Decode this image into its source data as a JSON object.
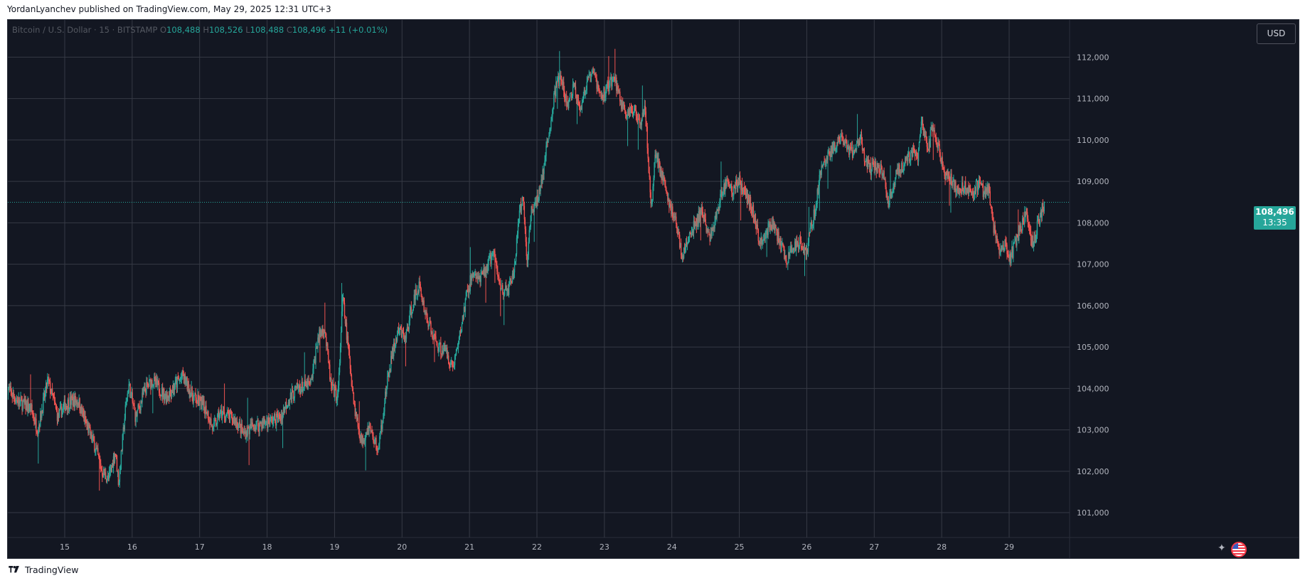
{
  "header": {
    "published_line": "YordanLyanchev published on TradingView.com, May 29, 2025 12:31 UTC+3"
  },
  "legend": {
    "symbol": "Bitcoin / U.S. Dollar · 15 · BITSTAMP",
    "o_label": "O",
    "o_value": "108,488",
    "h_label": "H",
    "h_value": "108,526",
    "l_label": "L",
    "l_value": "108,488",
    "c_label": "C",
    "c_value": "108,496",
    "change": "+11 (+0.01%)"
  },
  "currency_button": "USD",
  "last_price": {
    "value": "108,496",
    "countdown": "13:35"
  },
  "footer": {
    "brand": "TradingView"
  },
  "icons": {
    "logo": "tradingview-logo-icon",
    "flag": "us-flag-icon",
    "rocket": "rocket-icon"
  },
  "colors": {
    "up": "#26a69a",
    "down": "#ef5350",
    "background": "#131722",
    "grid": "#363a45"
  },
  "chart_data": {
    "type": "candlestick",
    "interval": "15",
    "x_ticks": [
      "15",
      "16",
      "17",
      "18",
      "19",
      "20",
      "21",
      "22",
      "23",
      "24",
      "25",
      "26",
      "27",
      "28",
      "29"
    ],
    "y_ticks": [
      "101,000",
      "102,000",
      "103,000",
      "104,000",
      "105,000",
      "106,000",
      "107,000",
      "108,000",
      "109,000",
      "110,000",
      "111,000",
      "112,000"
    ],
    "ylim": [
      100400,
      112900
    ],
    "xlim": [
      14.15,
      30.0
    ],
    "last_close": 108496,
    "grid": true,
    "path": [
      [
        14.15,
        104000
      ],
      [
        14.3,
        103700
      ],
      [
        14.5,
        103500
      ],
      [
        14.6,
        103000
      ],
      [
        14.75,
        104200
      ],
      [
        14.9,
        103300
      ],
      [
        15.0,
        103600
      ],
      [
        15.1,
        103700
      ],
      [
        15.2,
        103700
      ],
      [
        15.3,
        103200
      ],
      [
        15.45,
        102600
      ],
      [
        15.55,
        102000
      ],
      [
        15.65,
        101800
      ],
      [
        15.75,
        102500
      ],
      [
        15.8,
        101700
      ],
      [
        15.9,
        103500
      ],
      [
        15.95,
        104100
      ],
      [
        16.05,
        103300
      ],
      [
        16.2,
        104000
      ],
      [
        16.3,
        104200
      ],
      [
        16.5,
        103800
      ],
      [
        16.6,
        104000
      ],
      [
        16.75,
        104300
      ],
      [
        16.9,
        103800
      ],
      [
        17.1,
        103500
      ],
      [
        17.2,
        103000
      ],
      [
        17.3,
        103400
      ],
      [
        17.45,
        103300
      ],
      [
        17.55,
        103200
      ],
      [
        17.65,
        102900
      ],
      [
        17.8,
        103100
      ],
      [
        18.0,
        103200
      ],
      [
        18.2,
        103300
      ],
      [
        18.3,
        103700
      ],
      [
        18.45,
        104000
      ],
      [
        18.65,
        104100
      ],
      [
        18.75,
        105200
      ],
      [
        18.85,
        105500
      ],
      [
        18.95,
        104000
      ],
      [
        19.05,
        103800
      ],
      [
        19.12,
        106200
      ],
      [
        19.2,
        105000
      ],
      [
        19.3,
        103500
      ],
      [
        19.4,
        102700
      ],
      [
        19.5,
        103100
      ],
      [
        19.65,
        102500
      ],
      [
        19.75,
        103800
      ],
      [
        19.85,
        104800
      ],
      [
        19.95,
        105400
      ],
      [
        20.05,
        105200
      ],
      [
        20.15,
        106000
      ],
      [
        20.25,
        106500
      ],
      [
        20.35,
        105800
      ],
      [
        20.45,
        105300
      ],
      [
        20.55,
        105000
      ],
      [
        20.65,
        104900
      ],
      [
        20.75,
        104500
      ],
      [
        20.85,
        105200
      ],
      [
        20.95,
        106200
      ],
      [
        21.05,
        106800
      ],
      [
        21.15,
        106600
      ],
      [
        21.25,
        106900
      ],
      [
        21.35,
        107300
      ],
      [
        21.45,
        106500
      ],
      [
        21.55,
        106300
      ],
      [
        21.65,
        106700
      ],
      [
        21.75,
        108300
      ],
      [
        21.8,
        108600
      ],
      [
        21.85,
        107000
      ],
      [
        21.92,
        108300
      ],
      [
        22.0,
        108500
      ],
      [
        22.1,
        109300
      ],
      [
        22.2,
        110400
      ],
      [
        22.28,
        111300
      ],
      [
        22.35,
        111500
      ],
      [
        22.45,
        110800
      ],
      [
        22.55,
        111300
      ],
      [
        22.65,
        110800
      ],
      [
        22.75,
        111400
      ],
      [
        22.85,
        111600
      ],
      [
        22.95,
        111000
      ],
      [
        23.05,
        111300
      ],
      [
        23.15,
        111500
      ],
      [
        23.25,
        110900
      ],
      [
        23.35,
        110600
      ],
      [
        23.45,
        110700
      ],
      [
        23.55,
        110500
      ],
      [
        23.6,
        110900
      ],
      [
        23.65,
        109500
      ],
      [
        23.7,
        108300
      ],
      [
        23.75,
        109700
      ],
      [
        23.85,
        109200
      ],
      [
        23.95,
        108500
      ],
      [
        24.05,
        108100
      ],
      [
        24.15,
        107200
      ],
      [
        24.25,
        107600
      ],
      [
        24.35,
        108000
      ],
      [
        24.45,
        108300
      ],
      [
        24.55,
        107600
      ],
      [
        24.65,
        108100
      ],
      [
        24.7,
        108500
      ],
      [
        24.8,
        109000
      ],
      [
        24.9,
        108800
      ],
      [
        25.0,
        109000
      ],
      [
        25.1,
        108700
      ],
      [
        25.2,
        108300
      ],
      [
        25.3,
        107500
      ],
      [
        25.4,
        107800
      ],
      [
        25.5,
        108000
      ],
      [
        25.6,
        107500
      ],
      [
        25.7,
        107100
      ],
      [
        25.8,
        107400
      ],
      [
        25.9,
        107600
      ],
      [
        26.0,
        107300
      ],
      [
        26.05,
        107800
      ],
      [
        26.12,
        108300
      ],
      [
        26.2,
        109200
      ],
      [
        26.3,
        109600
      ],
      [
        26.4,
        109800
      ],
      [
        26.5,
        110000
      ],
      [
        26.6,
        109800
      ],
      [
        26.7,
        109700
      ],
      [
        26.8,
        110100
      ],
      [
        26.85,
        109500
      ],
      [
        26.95,
        109300
      ],
      [
        27.05,
        109400
      ],
      [
        27.15,
        109100
      ],
      [
        27.2,
        108500
      ],
      [
        27.25,
        108700
      ],
      [
        27.35,
        109300
      ],
      [
        27.45,
        109400
      ],
      [
        27.55,
        109700
      ],
      [
        27.65,
        109600
      ],
      [
        27.7,
        110400
      ],
      [
        27.8,
        109700
      ],
      [
        27.85,
        110300
      ],
      [
        27.95,
        109800
      ],
      [
        28.05,
        109200
      ],
      [
        28.15,
        109000
      ],
      [
        28.25,
        108800
      ],
      [
        28.35,
        108900
      ],
      [
        28.45,
        108800
      ],
      [
        28.55,
        108900
      ],
      [
        28.65,
        108700
      ],
      [
        28.7,
        108900
      ],
      [
        28.75,
        108000
      ],
      [
        28.85,
        107300
      ],
      [
        28.95,
        107500
      ],
      [
        29.0,
        107100
      ],
      [
        29.05,
        107300
      ],
      [
        29.15,
        107800
      ],
      [
        29.25,
        108200
      ],
      [
        29.3,
        107800
      ],
      [
        29.35,
        107500
      ],
      [
        29.45,
        108100
      ],
      [
        29.52,
        108496
      ]
    ]
  }
}
